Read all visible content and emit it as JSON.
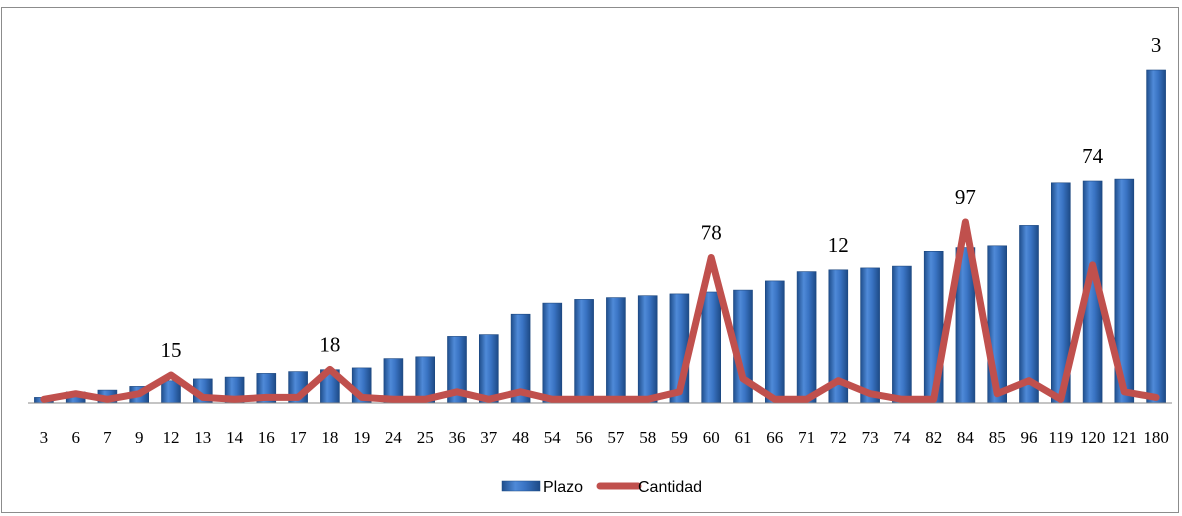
{
  "chart_data": {
    "type": "bar",
    "categories": [
      "3",
      "6",
      "7",
      "9",
      "12",
      "13",
      "14",
      "16",
      "17",
      "18",
      "19",
      "24",
      "25",
      "36",
      "37",
      "48",
      "54",
      "56",
      "57",
      "58",
      "59",
      "60",
      "61",
      "66",
      "71",
      "72",
      "73",
      "74",
      "82",
      "84",
      "85",
      "96",
      "119",
      "120",
      "121",
      "180"
    ],
    "series": [
      {
        "name": "Plazo",
        "type": "bar",
        "color": "#3f78c8",
        "values": [
          3,
          6,
          7,
          9,
          12,
          13,
          14,
          16,
          17,
          18,
          19,
          24,
          25,
          36,
          37,
          48,
          54,
          56,
          57,
          58,
          59,
          60,
          61,
          66,
          71,
          72,
          73,
          74,
          82,
          84,
          85,
          96,
          119,
          120,
          121,
          180
        ]
      },
      {
        "name": "Cantidad",
        "type": "line",
        "color": "#c0504d",
        "values": [
          2,
          5,
          2,
          5,
          15,
          3,
          2,
          3,
          3,
          18,
          3,
          2,
          2,
          6,
          2,
          6,
          2,
          2,
          2,
          2,
          6,
          78,
          13,
          2,
          2,
          12,
          5,
          2,
          2,
          97,
          5,
          12,
          2,
          74,
          6,
          3
        ]
      }
    ],
    "data_labels": [
      {
        "category": "12",
        "text": "15"
      },
      {
        "category": "18",
        "text": "18"
      },
      {
        "category": "60",
        "text": "78"
      },
      {
        "category": "72",
        "text": "12"
      },
      {
        "category": "84",
        "text": "97"
      },
      {
        "category": "120",
        "text": "74"
      },
      {
        "category": "180",
        "text": "3"
      }
    ],
    "ylim": [
      0,
      180
    ],
    "line_ylim": [
      0,
      133
    ],
    "legend_position": "bottom",
    "grid": false,
    "title": "",
    "xlabel": "",
    "ylabel": ""
  }
}
